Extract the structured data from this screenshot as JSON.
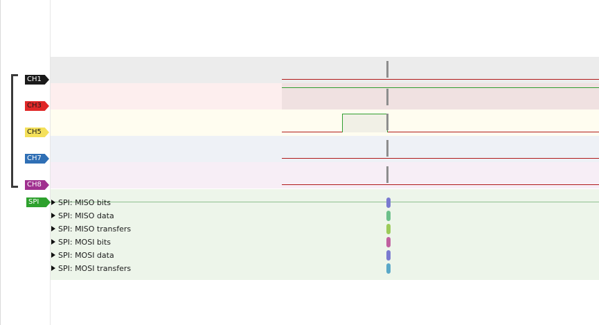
{
  "channels": [
    {
      "label": "CH1",
      "color": "#1a1a1a",
      "text_color": "#ffffff",
      "band_color": "#ececec",
      "shade_color": "#ececec"
    },
    {
      "label": "CH3",
      "color": "#e02828",
      "text_color": "#1a1a1a",
      "band_color": "#fdeeee",
      "shade_color": "#f0e1e1"
    },
    {
      "label": "CH5",
      "color": "#f4e05a",
      "text_color": "#1a1a1a",
      "band_color": "#fffdf0",
      "shade_color": "#fffdf0"
    },
    {
      "label": "CH7",
      "color": "#2f6fb5",
      "text_color": "#ffffff",
      "band_color": "#eef1f6",
      "shade_color": "#eef1f6"
    },
    {
      "label": "CH8",
      "color": "#a0308f",
      "text_color": "#ffffff",
      "band_color": "#f7eef6",
      "shade_color": "#f7eef6"
    }
  ],
  "decoder": {
    "label": "SPI",
    "color": "#2ea12e",
    "text_color": "#ffffff",
    "rows": [
      {
        "label": "SPI: MISO bits",
        "marker_color": "#7a7ad0"
      },
      {
        "label": "SPI: MISO data",
        "marker_color": "#6cc08a"
      },
      {
        "label": "SPI: MISO transfers",
        "marker_color": "#9ccb5a"
      },
      {
        "label": "SPI: MOSI bits",
        "marker_color": "#c060a0"
      },
      {
        "label": "SPI: MOSI data",
        "marker_color": "#7a7ad0"
      },
      {
        "label": "SPI: MOSI transfers",
        "marker_color": "#5aa8c8"
      }
    ]
  },
  "traces": {
    "CH1": "low",
    "CH3": "high",
    "CH5": "pulse",
    "CH7": "low",
    "CH8": "low"
  }
}
